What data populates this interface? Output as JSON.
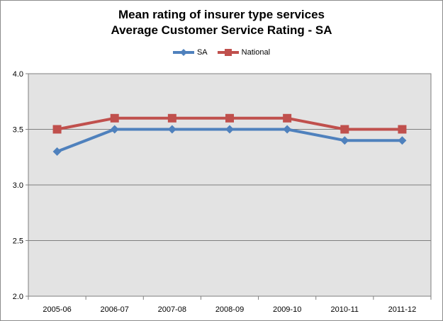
{
  "chart_data": {
    "type": "line",
    "title_line1": "Mean rating of insurer type services",
    "title_line2": "Average Customer Service Rating - SA",
    "categories": [
      "2005-06",
      "2006-07",
      "2007-08",
      "2008-09",
      "2009-10",
      "2010-11",
      "2011-12"
    ],
    "series": [
      {
        "name": "SA",
        "values": [
          3.3,
          3.5,
          3.5,
          3.5,
          3.5,
          3.4,
          3.4
        ],
        "color": "#4f81bd",
        "marker": "diamond"
      },
      {
        "name": "National",
        "values": [
          3.5,
          3.6,
          3.6,
          3.6,
          3.6,
          3.5,
          3.5
        ],
        "color": "#c0504d",
        "marker": "square"
      }
    ],
    "ylim": [
      2.0,
      4.0
    ],
    "yticks": [
      "2.0",
      "2.5",
      "3.0",
      "3.5",
      "4.0"
    ],
    "grid": true,
    "legend_position": "top",
    "plot_background": "#e3e3e3"
  }
}
